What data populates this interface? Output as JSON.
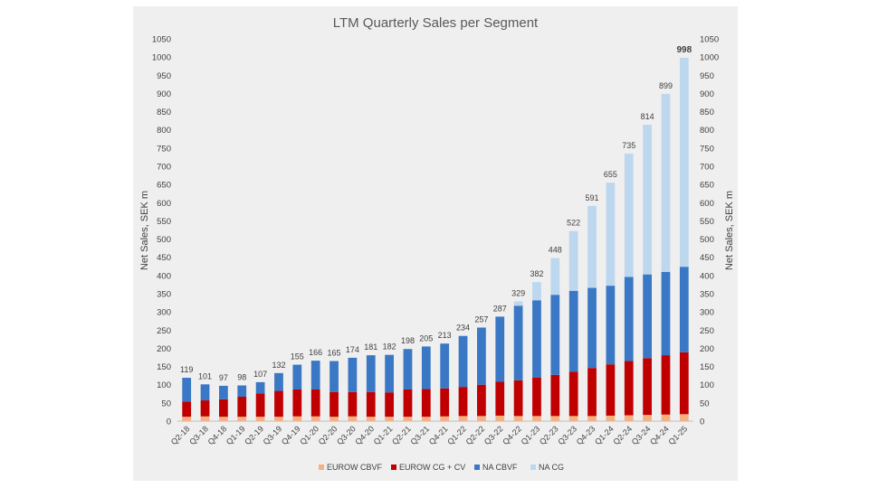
{
  "chart_data": {
    "type": "bar",
    "stacked": true,
    "title": "LTM Quarterly Sales per Segment",
    "ylabel": "Net Sales, SEK m",
    "ylabel_right": "Net Sales, SEK m",
    "ylim": [
      0,
      1050
    ],
    "ytick_step": 50,
    "grid": false,
    "legend_position": "bottom",
    "categories": [
      "Q2-18",
      "Q3-18",
      "Q4-18",
      "Q1-19",
      "Q2-19",
      "Q3-19",
      "Q4-19",
      "Q1-20",
      "Q2-20",
      "Q3-20",
      "Q4-20",
      "Q1-21",
      "Q2-21",
      "Q3-21",
      "Q4-21",
      "Q1-22",
      "Q2-22",
      "Q3-22",
      "Q4-22",
      "Q1-23",
      "Q2-23",
      "Q3-23",
      "Q4-23",
      "Q1-24",
      "Q2-24",
      "Q3-24",
      "Q4-24",
      "Q1-25"
    ],
    "totals": [
      119,
      101,
      97,
      98,
      107,
      132,
      155,
      166,
      165,
      174,
      181,
      182,
      198,
      205,
      213,
      234,
      257,
      287,
      329,
      382,
      448,
      522,
      591,
      655,
      735,
      814,
      899,
      998
    ],
    "highlight_last_total": true,
    "series": [
      {
        "name": "EUROW CBVF",
        "color": "#f4b183",
        "values": [
          12,
          13,
          12,
          12,
          12,
          12,
          13,
          13,
          12,
          13,
          12,
          12,
          12,
          12,
          13,
          14,
          14,
          15,
          14,
          14,
          14,
          14,
          14,
          15,
          16,
          17,
          18,
          19
        ]
      },
      {
        "name": "EUROW CG + CV",
        "color": "#c00000",
        "values": [
          42,
          44,
          48,
          55,
          64,
          71,
          74,
          74,
          68,
          67,
          68,
          67,
          75,
          76,
          77,
          80,
          86,
          93,
          98,
          106,
          113,
          122,
          132,
          141,
          149,
          156,
          163,
          170
        ]
      },
      {
        "name": "NA CBVF",
        "color": "#3a78c5",
        "values": [
          65,
          44,
          37,
          31,
          31,
          49,
          68,
          79,
          85,
          94,
          101,
          103,
          111,
          117,
          123,
          140,
          157,
          179,
          205,
          212,
          220,
          222,
          220,
          216,
          231,
          230,
          229,
          235
        ]
      },
      {
        "name": "NA CG",
        "color": "#bdd7ee",
        "values": [
          0,
          0,
          0,
          0,
          0,
          0,
          0,
          0,
          0,
          0,
          0,
          0,
          0,
          0,
          0,
          0,
          0,
          0,
          12,
          50,
          101,
          164,
          225,
          283,
          339,
          411,
          489,
          574
        ]
      }
    ]
  }
}
